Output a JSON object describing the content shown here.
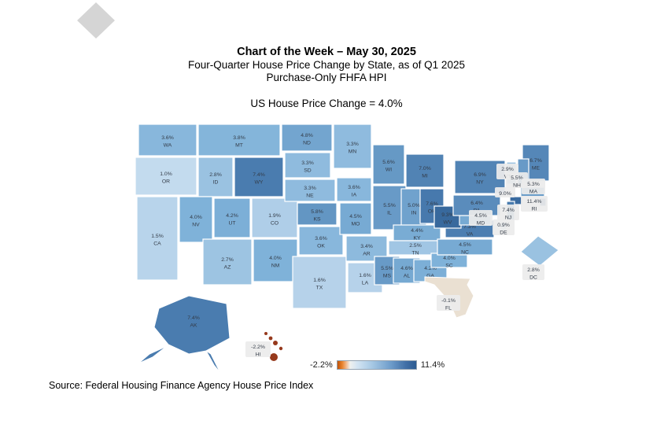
{
  "header": {
    "title": "Chart of the Week – May 30, 2025",
    "subtitle1": "Four-Quarter House Price Change by State, as of Q1 2025",
    "subtitle2": "Purchase-Only FHFA HPI",
    "summary": "US House Price Change = 4.0%"
  },
  "source": "Source: Federal Housing Finance Agency House Price Index",
  "chart_data": {
    "type": "choropleth_map",
    "title": "Four-Quarter House Price Change by State, as of Q1 2025",
    "subtitle": "Purchase-Only FHFA HPI",
    "us_house_price_change_pct": 4.0,
    "legend": {
      "min": -2.2,
      "max": 11.4,
      "min_label": "-2.2%",
      "max_label": "11.4%",
      "negative_color": "#c05309",
      "zero_color": "#efefec",
      "positive_color": "#2d5c92"
    },
    "states": [
      {
        "abbr": "WA",
        "value": 3.6,
        "label": "3.6%"
      },
      {
        "abbr": "OR",
        "value": 1.0,
        "label": "1.0%"
      },
      {
        "abbr": "CA",
        "value": 1.5,
        "label": "1.5%"
      },
      {
        "abbr": "ID",
        "value": 2.8,
        "label": "2.8%"
      },
      {
        "abbr": "NV",
        "value": 4.0,
        "label": "4.0%"
      },
      {
        "abbr": "UT",
        "value": 4.2,
        "label": "4.2%"
      },
      {
        "abbr": "AZ",
        "value": 2.7,
        "label": "2.7%"
      },
      {
        "abbr": "MT",
        "value": 3.8,
        "label": "3.8%"
      },
      {
        "abbr": "WY",
        "value": 7.4,
        "label": "7.4%"
      },
      {
        "abbr": "CO",
        "value": 1.9,
        "label": "1.9%"
      },
      {
        "abbr": "NM",
        "value": 4.0,
        "label": "4.0%"
      },
      {
        "abbr": "ND",
        "value": 4.8,
        "label": "4.8%"
      },
      {
        "abbr": "SD",
        "value": 3.3,
        "label": "3.3%"
      },
      {
        "abbr": "NE",
        "value": 3.3,
        "label": "3.3%"
      },
      {
        "abbr": "KS",
        "value": 5.8,
        "label": "5.8%"
      },
      {
        "abbr": "OK",
        "value": 3.6,
        "label": "3.6%"
      },
      {
        "abbr": "TX",
        "value": 1.6,
        "label": "1.6%"
      },
      {
        "abbr": "MN",
        "value": 3.3,
        "label": "3.3%"
      },
      {
        "abbr": "IA",
        "value": 3.6,
        "label": "3.6%"
      },
      {
        "abbr": "MO",
        "value": 4.5,
        "label": "4.5%"
      },
      {
        "abbr": "AR",
        "value": 3.4,
        "label": "3.4%"
      },
      {
        "abbr": "LA",
        "value": 1.6,
        "label": "1.6%"
      },
      {
        "abbr": "WI",
        "value": 5.6,
        "label": "5.6%"
      },
      {
        "abbr": "IL",
        "value": 5.5,
        "label": "5.5%"
      },
      {
        "abbr": "IN",
        "value": 5.0,
        "label": "5.0%"
      },
      {
        "abbr": "MI",
        "value": 7.0,
        "label": "7.0%"
      },
      {
        "abbr": "OH",
        "value": 7.6,
        "label": "7.6%"
      },
      {
        "abbr": "KY",
        "value": 4.4,
        "label": "4.4%"
      },
      {
        "abbr": "TN",
        "value": 2.5,
        "label": "2.5%"
      },
      {
        "abbr": "MS",
        "value": 5.5,
        "label": "5.5%"
      },
      {
        "abbr": "AL",
        "value": 4.6,
        "label": "4.6%"
      },
      {
        "abbr": "GA",
        "value": 4.2,
        "label": "4.2%"
      },
      {
        "abbr": "SC",
        "value": 4.0,
        "label": "4.0%"
      },
      {
        "abbr": "NC",
        "value": 4.5,
        "label": "4.5%"
      },
      {
        "abbr": "FL",
        "value": -0.1,
        "label": "-0.1%"
      },
      {
        "abbr": "VA",
        "value": 7.3,
        "label": "7.3%"
      },
      {
        "abbr": "WV",
        "value": 9.3,
        "label": "9.3%"
      },
      {
        "abbr": "MD",
        "value": 4.5,
        "label": "4.5%"
      },
      {
        "abbr": "DE",
        "value": 0.9,
        "label": "0.9%"
      },
      {
        "abbr": "NJ",
        "value": 7.4,
        "label": "7.4%"
      },
      {
        "abbr": "PA",
        "value": 6.4,
        "label": "6.4%"
      },
      {
        "abbr": "NY",
        "value": 6.9,
        "label": "6.9%"
      },
      {
        "abbr": "CT",
        "value": 9.0,
        "label": "9.0%"
      },
      {
        "abbr": "RI",
        "value": 11.4,
        "label": "11.4%"
      },
      {
        "abbr": "MA",
        "value": 5.3,
        "label": "5.3%"
      },
      {
        "abbr": "VT",
        "value": 2.9,
        "label": "2.9%"
      },
      {
        "abbr": "NH",
        "value": 5.5,
        "label": "5.5%"
      },
      {
        "abbr": "ME",
        "value": 6.7,
        "label": "6.7%"
      },
      {
        "abbr": "AK",
        "value": 7.4,
        "label": "7.4%"
      },
      {
        "abbr": "HI",
        "value": -2.2,
        "label": "-2.2%"
      },
      {
        "abbr": "DC",
        "value": 2.8,
        "label": "2.8%"
      }
    ]
  }
}
